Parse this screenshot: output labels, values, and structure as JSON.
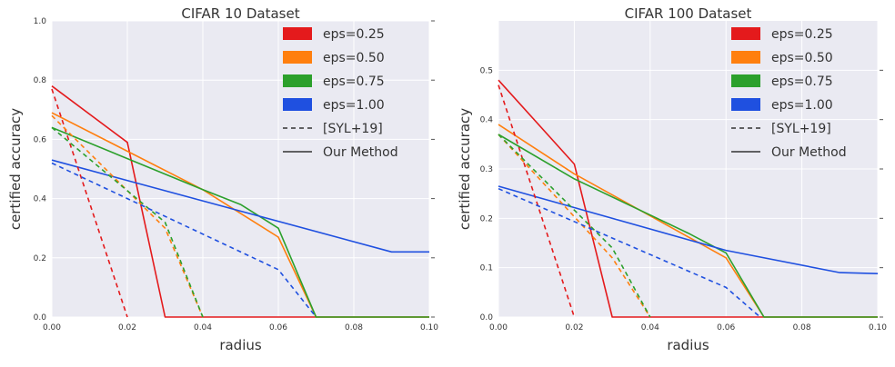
{
  "chart_data": [
    {
      "type": "line",
      "title": "CIFAR 10 Dataset",
      "xlabel": "radius",
      "ylabel": "certified accuracy",
      "xlim": [
        0,
        0.1
      ],
      "ylim": [
        0,
        1.0
      ],
      "xticks": [
        "0.00",
        "0.02",
        "0.04",
        "0.06",
        "0.08",
        "0.10"
      ],
      "yticks": [
        "0.0",
        "0.2",
        "0.4",
        "0.6",
        "0.8",
        "1.0"
      ],
      "grid": true,
      "legend_position": "top-right",
      "legend": {
        "colors": [
          {
            "label": "eps=0.25",
            "color": "#e41a1c"
          },
          {
            "label": "eps=0.50",
            "color": "#ff7f0e"
          },
          {
            "label": "eps=0.75",
            "color": "#2ca02c"
          },
          {
            "label": "eps=1.00",
            "color": "#1f50e0"
          }
        ],
        "styles": [
          {
            "label": "[SYL+19]",
            "style": "dashed"
          },
          {
            "label": "Our Method",
            "style": "solid"
          }
        ]
      },
      "series": [
        {
          "eps": "eps=0.25",
          "method": "Our Method",
          "color": "#e41a1c",
          "x": [
            0,
            0.02,
            0.03,
            0.1
          ],
          "y": [
            0.78,
            0.59,
            0,
            0
          ]
        },
        {
          "eps": "eps=0.50",
          "method": "Our Method",
          "color": "#ff7f0e",
          "x": [
            0,
            0.04,
            0.06,
            0.07,
            0.1
          ],
          "y": [
            0.69,
            0.43,
            0.27,
            0,
            0
          ]
        },
        {
          "eps": "eps=0.75",
          "method": "Our Method",
          "color": "#2ca02c",
          "x": [
            0,
            0.04,
            0.05,
            0.06,
            0.07,
            0.1
          ],
          "y": [
            0.64,
            0.43,
            0.38,
            0.3,
            0,
            0
          ]
        },
        {
          "eps": "eps=1.00",
          "method": "Our Method",
          "color": "#1f50e0",
          "x": [
            0,
            0.09,
            0.1
          ],
          "y": [
            0.53,
            0.22,
            0.22
          ]
        },
        {
          "eps": "eps=0.25",
          "method": "[SYL+19]",
          "color": "#e41a1c",
          "x": [
            0,
            0.02
          ],
          "y": [
            0.77,
            0
          ]
        },
        {
          "eps": "eps=0.50",
          "method": "[SYL+19]",
          "color": "#ff7f0e",
          "x": [
            0,
            0.03,
            0.04
          ],
          "y": [
            0.68,
            0.3,
            0
          ]
        },
        {
          "eps": "eps=0.75",
          "method": "[SYL+19]",
          "color": "#2ca02c",
          "x": [
            0,
            0.03,
            0.04
          ],
          "y": [
            0.64,
            0.32,
            0
          ]
        },
        {
          "eps": "eps=1.00",
          "method": "[SYL+19]",
          "color": "#1f50e0",
          "x": [
            0,
            0.06,
            0.07
          ],
          "y": [
            0.52,
            0.16,
            0
          ]
        }
      ]
    },
    {
      "type": "line",
      "title": "CIFAR 100 Dataset",
      "xlabel": "radius",
      "ylabel": "certified accuracy",
      "xlim": [
        0,
        0.1
      ],
      "ylim": [
        0,
        0.6
      ],
      "xticks": [
        "0.00",
        "0.02",
        "0.04",
        "0.06",
        "0.08",
        "0.10"
      ],
      "yticks": [
        "0.0",
        "0.1",
        "0.2",
        "0.3",
        "0.4",
        "0.5"
      ],
      "grid": true,
      "legend_position": "top-right",
      "legend": {
        "colors": [
          {
            "label": "eps=0.25",
            "color": "#e41a1c"
          },
          {
            "label": "eps=0.50",
            "color": "#ff7f0e"
          },
          {
            "label": "eps=0.75",
            "color": "#2ca02c"
          },
          {
            "label": "eps=1.00",
            "color": "#1f50e0"
          }
        ],
        "styles": [
          {
            "label": "[SYL+19]",
            "style": "dashed"
          },
          {
            "label": "Our Method",
            "style": "solid"
          }
        ]
      },
      "series": [
        {
          "eps": "eps=0.25",
          "method": "Our Method",
          "color": "#e41a1c",
          "x": [
            0,
            0.02,
            0.03,
            0.1
          ],
          "y": [
            0.48,
            0.31,
            0,
            0
          ]
        },
        {
          "eps": "eps=0.50",
          "method": "Our Method",
          "color": "#ff7f0e",
          "x": [
            0,
            0.02,
            0.06,
            0.07,
            0.1
          ],
          "y": [
            0.39,
            0.29,
            0.12,
            0,
            0
          ]
        },
        {
          "eps": "eps=0.75",
          "method": "Our Method",
          "color": "#2ca02c",
          "x": [
            0,
            0.02,
            0.05,
            0.06,
            0.07,
            0.1
          ],
          "y": [
            0.37,
            0.28,
            0.17,
            0.13,
            0,
            0
          ]
        },
        {
          "eps": "eps=1.00",
          "method": "Our Method",
          "color": "#1f50e0",
          "x": [
            0,
            0.06,
            0.09,
            0.1
          ],
          "y": [
            0.265,
            0.135,
            0.09,
            0.088
          ]
        },
        {
          "eps": "eps=0.25",
          "method": "[SYL+19]",
          "color": "#e41a1c",
          "x": [
            0,
            0.02
          ],
          "y": [
            0.47,
            0
          ]
        },
        {
          "eps": "eps=0.50",
          "method": "[SYL+19]",
          "color": "#ff7f0e",
          "x": [
            0,
            0.03,
            0.04
          ],
          "y": [
            0.37,
            0.12,
            0
          ]
        },
        {
          "eps": "eps=0.75",
          "method": "[SYL+19]",
          "color": "#2ca02c",
          "x": [
            0,
            0.03,
            0.04
          ],
          "y": [
            0.37,
            0.14,
            0
          ]
        },
        {
          "eps": "eps=1.00",
          "method": "[SYL+19]",
          "color": "#1f50e0",
          "x": [
            0,
            0.06,
            0.069
          ],
          "y": [
            0.26,
            0.06,
            0
          ]
        }
      ]
    }
  ]
}
